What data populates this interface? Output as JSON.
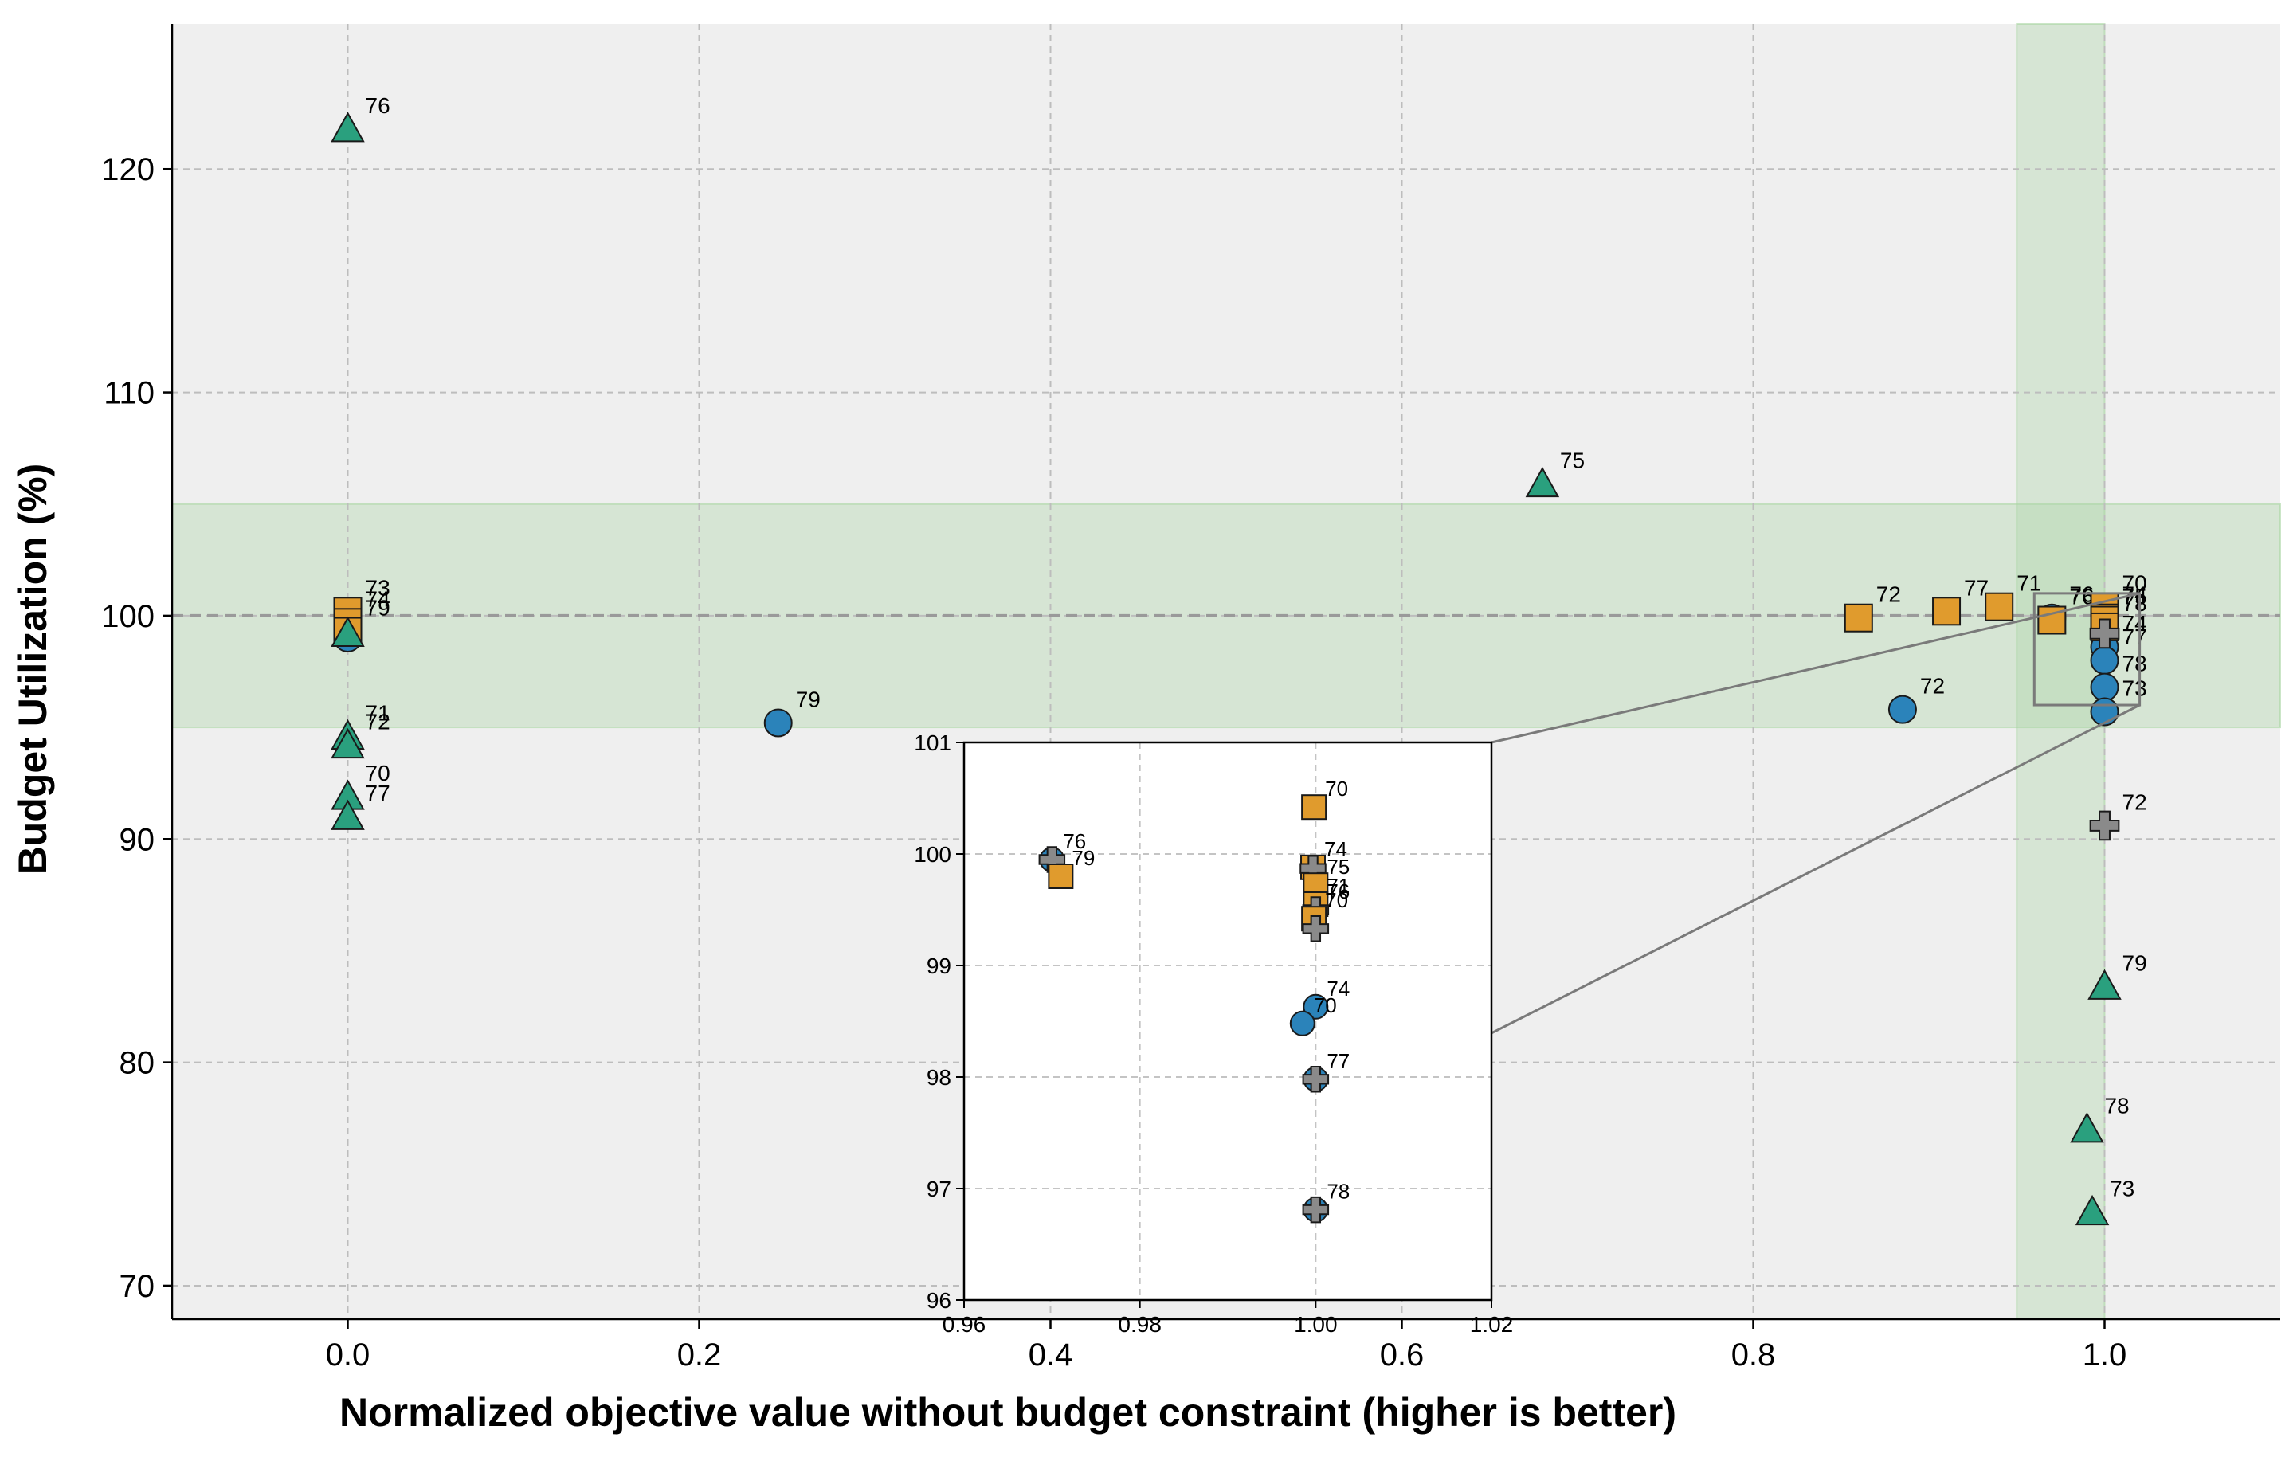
{
  "chart_data": {
    "type": "scatter",
    "xlabel": "Normalized objective value without budget constraint (higher is better)",
    "ylabel": "Budget Utilization (%)",
    "xlim": [
      -0.1,
      1.1
    ],
    "ylim": [
      68.5,
      126.5
    ],
    "x_ticks": [
      0.0,
      0.2,
      0.4,
      0.6,
      0.8,
      1.0
    ],
    "x_tick_labels": [
      "0.0",
      "0.2",
      "0.4",
      "0.6",
      "0.8",
      "1.0"
    ],
    "y_ticks": [
      70,
      80,
      90,
      100,
      110,
      120
    ],
    "y_tick_labels": [
      "70",
      "80",
      "90",
      "100",
      "110",
      "120"
    ],
    "grid": true,
    "reference_line_y": 100,
    "feasible_band_y": [
      95,
      105
    ],
    "feasible_band_x": [
      0.95,
      1.0
    ],
    "colors": {
      "circle": "#2b83ba",
      "square": "#e09b2d",
      "triangle": "#2aa07e",
      "cross": "#8a8a8a",
      "band": "#a8d5a2",
      "plot_bg": "#efefef"
    },
    "series": [
      {
        "marker": "circle",
        "points": [
          {
            "x": 0.0,
            "y": 99.0,
            "label": ""
          },
          {
            "x": 0.245,
            "y": 95.2,
            "label": "79"
          },
          {
            "x": 0.885,
            "y": 95.8,
            "label": "72"
          },
          {
            "x": 0.97,
            "y": 99.9,
            "label": "76"
          },
          {
            "x": 1.0,
            "y": 98.6,
            "label": "74"
          },
          {
            "x": 1.0,
            "y": 98.0,
            "label": "77"
          },
          {
            "x": 1.0,
            "y": 96.8,
            "label": "78"
          },
          {
            "x": 1.0,
            "y": 95.7,
            "label": "73"
          }
        ]
      },
      {
        "marker": "square",
        "points": [
          {
            "x": 0.0,
            "y": 100.2,
            "label": "73"
          },
          {
            "x": 0.0,
            "y": 99.7,
            "label": "74"
          },
          {
            "x": 0.0,
            "y": 99.3,
            "label": "79"
          },
          {
            "x": 0.86,
            "y": 99.9,
            "label": "72"
          },
          {
            "x": 0.91,
            "y": 100.2,
            "label": "77"
          },
          {
            "x": 0.94,
            "y": 100.4,
            "label": "71"
          },
          {
            "x": 0.97,
            "y": 99.8,
            "label": "76"
          },
          {
            "x": 1.0,
            "y": 100.4,
            "label": "70"
          },
          {
            "x": 1.0,
            "y": 99.9,
            "label": "74"
          },
          {
            "x": 1.0,
            "y": 99.8,
            "label": "75"
          },
          {
            "x": 1.0,
            "y": 99.5,
            "label": "78"
          }
        ]
      },
      {
        "marker": "triangle",
        "points": [
          {
            "x": 0.0,
            "y": 121.8,
            "label": "76"
          },
          {
            "x": 0.0,
            "y": 99.2,
            "label": ""
          },
          {
            "x": 0.0,
            "y": 94.6,
            "label": "71"
          },
          {
            "x": 0.0,
            "y": 94.2,
            "label": "72"
          },
          {
            "x": 0.0,
            "y": 91.9,
            "label": "70"
          },
          {
            "x": 0.0,
            "y": 91.0,
            "label": "77"
          },
          {
            "x": 0.68,
            "y": 105.9,
            "label": "75"
          },
          {
            "x": 1.0,
            "y": 83.4,
            "label": "79"
          },
          {
            "x": 0.99,
            "y": 77.0,
            "label": "78"
          },
          {
            "x": 0.993,
            "y": 73.3,
            "label": "73"
          }
        ]
      },
      {
        "marker": "cross",
        "points": [
          {
            "x": 1.0,
            "y": 99.2,
            "label": ""
          },
          {
            "x": 1.0,
            "y": 90.6,
            "label": "72"
          }
        ]
      }
    ],
    "inset": {
      "xlim": [
        0.96,
        1.02
      ],
      "ylim": [
        96,
        101
      ],
      "x_ticks": [
        0.96,
        0.98,
        1.0,
        1.02
      ],
      "x_tick_labels": [
        "0.96",
        "0.98",
        "1.00",
        "1.02"
      ],
      "y_ticks": [
        96,
        97,
        98,
        99,
        100,
        101
      ],
      "y_tick_labels": [
        "96",
        "97",
        "98",
        "99",
        "100",
        "101"
      ],
      "points": [
        {
          "marker": "circle",
          "x": 0.97,
          "y": 99.95,
          "label": "76"
        },
        {
          "marker": "cross",
          "x": 0.97,
          "y": 99.95,
          "label": ""
        },
        {
          "marker": "square",
          "x": 0.971,
          "y": 99.8,
          "label": "79"
        },
        {
          "marker": "square",
          "x": 0.9998,
          "y": 100.42,
          "label": "70"
        },
        {
          "marker": "square",
          "x": 0.9997,
          "y": 99.88,
          "label": "74"
        },
        {
          "marker": "cross",
          "x": 0.9997,
          "y": 99.87,
          "label": ""
        },
        {
          "marker": "square",
          "x": 1.0,
          "y": 99.72,
          "label": "75"
        },
        {
          "marker": "square",
          "x": 1.0,
          "y": 99.55,
          "label": "71"
        },
        {
          "marker": "cross",
          "x": 1.0,
          "y": 99.5,
          "label": "76"
        },
        {
          "marker": "square",
          "x": 0.9998,
          "y": 99.42,
          "label": "70"
        },
        {
          "marker": "cross",
          "x": 1.0,
          "y": 99.33,
          "label": ""
        },
        {
          "marker": "circle",
          "x": 1.0,
          "y": 98.63,
          "label": "74"
        },
        {
          "marker": "circle",
          "x": 0.9985,
          "y": 98.48,
          "label": "70"
        },
        {
          "marker": "circle",
          "x": 1.0,
          "y": 97.98,
          "label": "77"
        },
        {
          "marker": "cross",
          "x": 1.0,
          "y": 97.98,
          "label": ""
        },
        {
          "marker": "circle",
          "x": 1.0,
          "y": 96.81,
          "label": "78"
        },
        {
          "marker": "cross",
          "x": 1.0,
          "y": 96.81,
          "label": ""
        }
      ]
    }
  }
}
